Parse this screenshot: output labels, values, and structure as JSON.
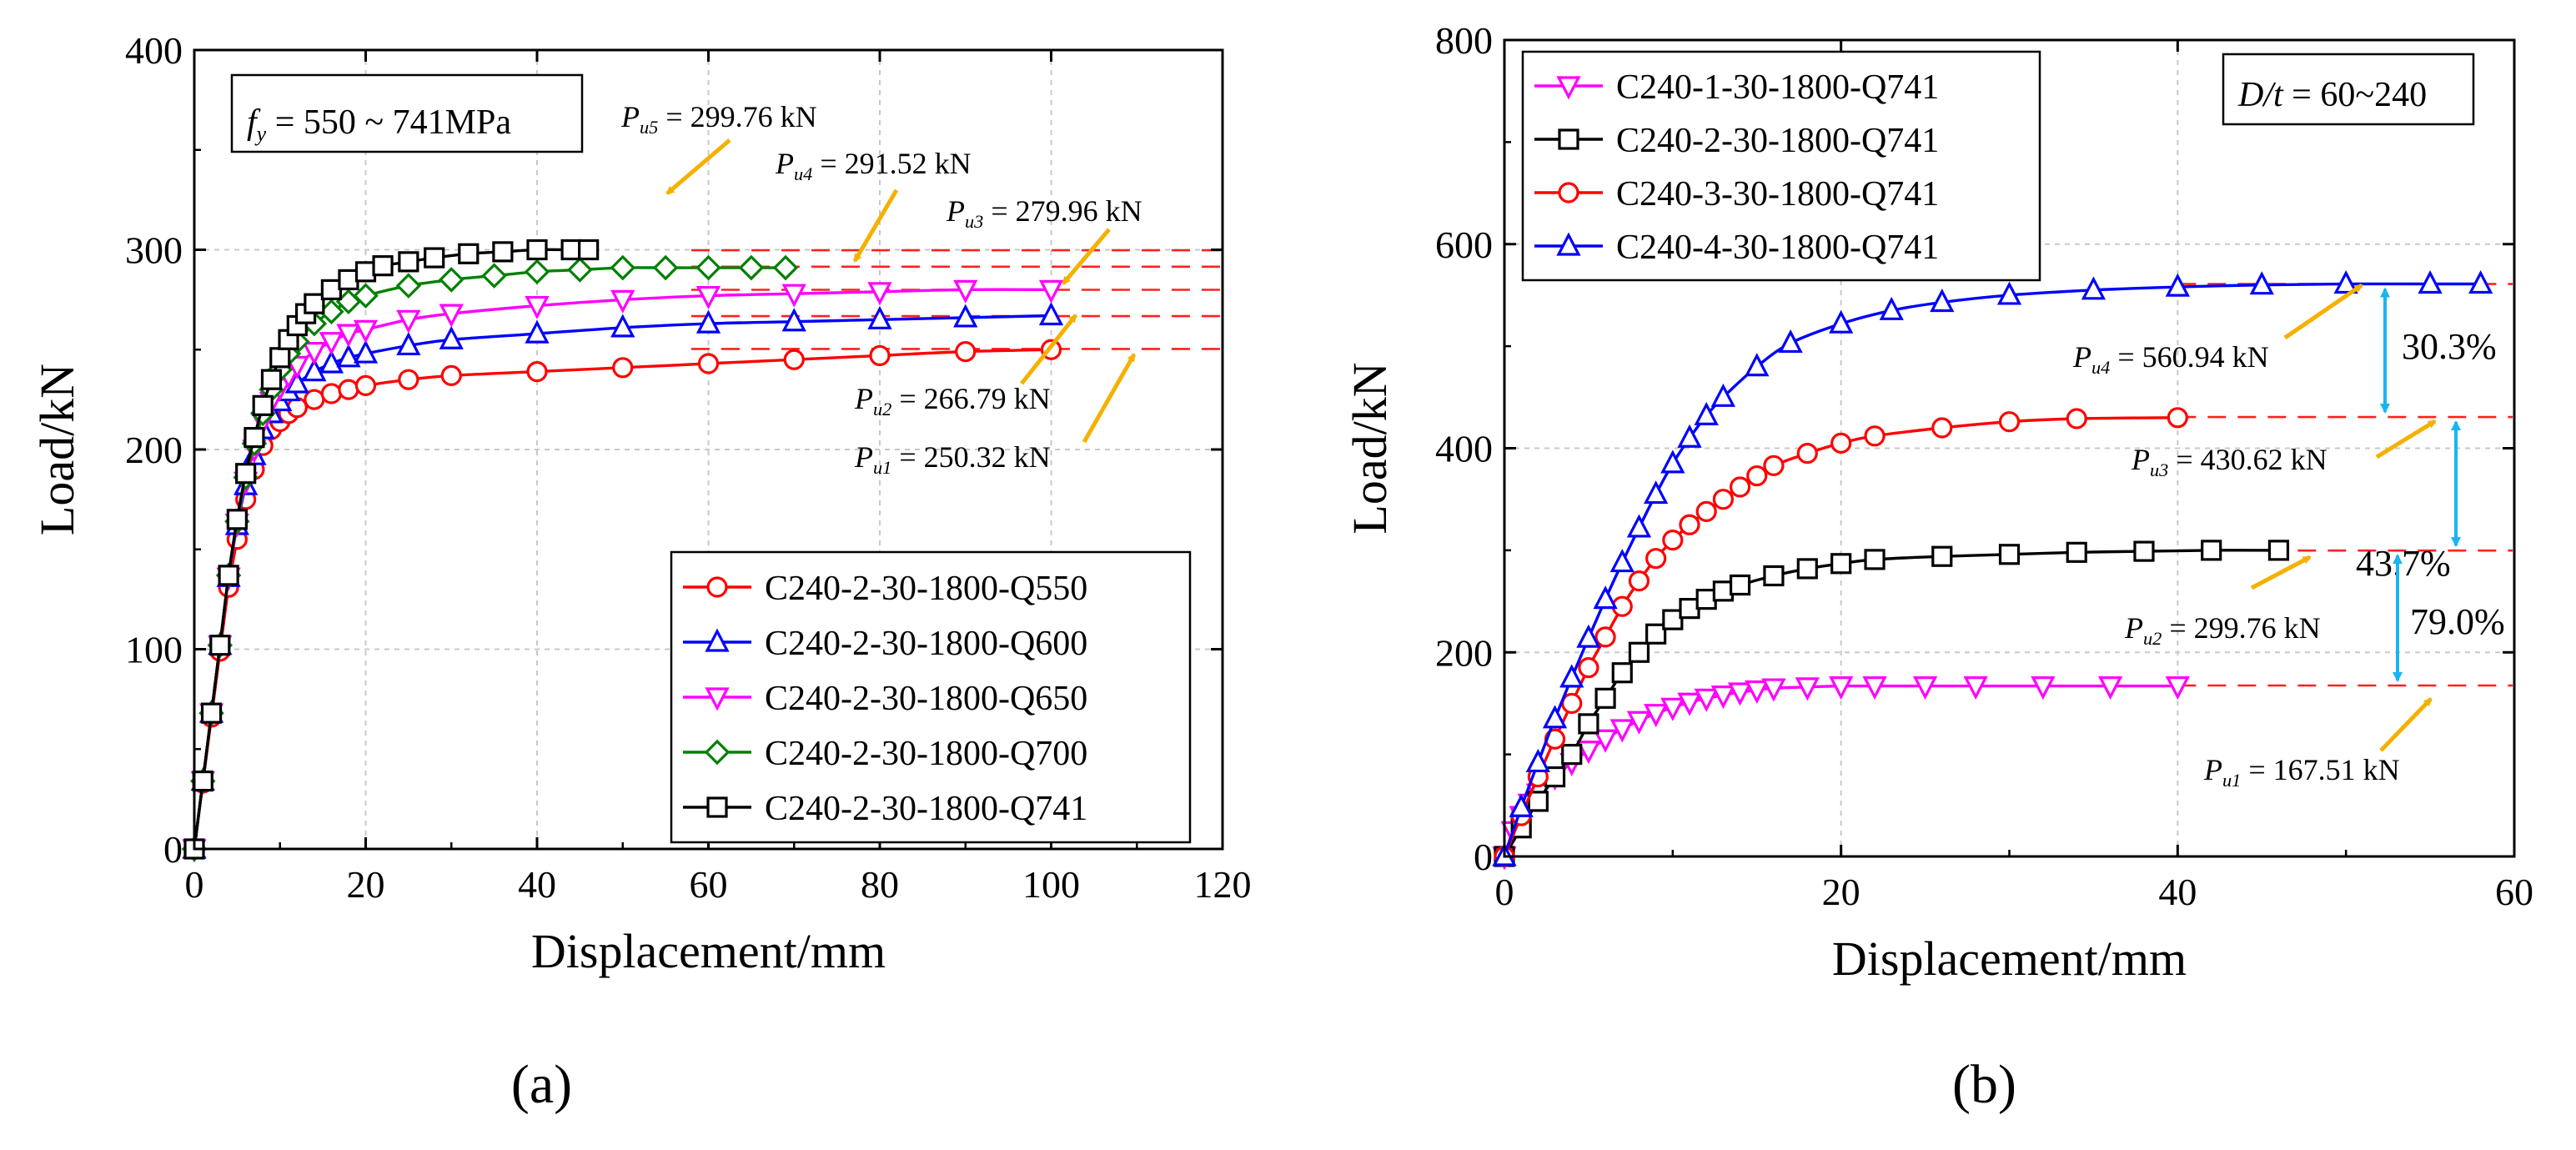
{
  "chart_data": [
    {
      "panel": "a",
      "type": "line",
      "caption": "(a)",
      "xlabel": "Displacement/mm",
      "ylabel": "Load/kN",
      "xlim": [
        0,
        120
      ],
      "ylim": [
        0,
        400
      ],
      "xticks": [
        0,
        20,
        40,
        60,
        80,
        100,
        120
      ],
      "yticks": [
        0,
        100,
        200,
        300,
        400
      ],
      "grid": true,
      "legend_position": "bottom-right",
      "note": {
        "symbol": "f",
        "sub": "y",
        "text": " = 550 ~ 741MPa"
      },
      "series": [
        {
          "name": "C240-2-30-1800-Q550",
          "color": "#ff0000",
          "marker": "circle",
          "x": [
            0,
            1,
            2,
            3,
            4,
            5,
            6,
            7,
            8,
            9,
            10,
            11,
            12,
            14,
            16,
            18,
            20,
            25,
            30,
            40,
            50,
            60,
            70,
            80,
            90,
            100
          ],
          "y": [
            0,
            33,
            66,
            99,
            131,
            155,
            175,
            190,
            202,
            210,
            214,
            218,
            221,
            225,
            228,
            230,
            232,
            235,
            237,
            239,
            241,
            243,
            245,
            247,
            249,
            250
          ]
        },
        {
          "name": "C240-2-30-1800-Q600",
          "color": "#0000ff",
          "marker": "triangle-up",
          "x": [
            0,
            1,
            2,
            3,
            4,
            5,
            6,
            7,
            8,
            9,
            10,
            11,
            12,
            14,
            16,
            18,
            20,
            25,
            30,
            40,
            50,
            60,
            70,
            80,
            90,
            100
          ],
          "y": [
            0,
            34,
            68,
            102,
            136,
            162,
            182,
            197,
            210,
            218,
            224,
            229,
            233,
            239,
            243,
            246,
            248,
            252,
            255,
            258,
            261,
            263,
            264,
            265,
            266,
            267
          ]
        },
        {
          "name": "C240-2-30-1800-Q650",
          "color": "#ff00ff",
          "marker": "triangle-down",
          "x": [
            0,
            1,
            2,
            3,
            4,
            5,
            6,
            7,
            8,
            9,
            10,
            11,
            12,
            14,
            16,
            18,
            20,
            25,
            30,
            40,
            50,
            60,
            70,
            80,
            90,
            100
          ],
          "y": [
            0,
            34,
            68,
            102,
            136,
            163,
            184,
            200,
            214,
            224,
            231,
            237,
            242,
            249,
            254,
            258,
            260,
            265,
            268,
            272,
            275,
            277,
            278,
            279,
            280,
            280
          ]
        },
        {
          "name": "C240-2-30-1800-Q700",
          "color": "#008000",
          "marker": "diamond",
          "x": [
            0,
            1,
            2,
            3,
            4,
            5,
            6,
            7,
            8,
            9,
            10,
            11,
            12,
            14,
            16,
            18,
            20,
            25,
            30,
            35,
            40,
            45,
            50,
            55,
            60,
            65,
            69
          ],
          "y": [
            0,
            34,
            68,
            102,
            137,
            164,
            186,
            203,
            218,
            230,
            240,
            248,
            254,
            263,
            269,
            274,
            277,
            282,
            285,
            287,
            289,
            290,
            291,
            291,
            291,
            291,
            291
          ]
        },
        {
          "name": "C240-2-30-1800-Q741",
          "color": "#000000",
          "marker": "square",
          "x": [
            0,
            1,
            2,
            3,
            4,
            5,
            6,
            7,
            8,
            9,
            10,
            11,
            12,
            13,
            14,
            16,
            18,
            20,
            22,
            25,
            28,
            32,
            36,
            40,
            44,
            46
          ],
          "y": [
            0,
            34,
            68,
            102,
            137,
            165,
            188,
            206,
            222,
            235,
            246,
            255,
            262,
            268,
            273,
            280,
            285,
            289,
            292,
            294,
            296,
            298,
            299,
            300,
            300,
            300
          ]
        }
      ],
      "reference_lines": [
        250.32,
        266.79,
        279.96,
        291.52,
        299.76
      ],
      "annotations": [
        {
          "symbol": "P",
          "sub": "u5",
          "text": " = 299.76  kN"
        },
        {
          "symbol": "P",
          "sub": "u4",
          "text": " = 291.52  kN"
        },
        {
          "symbol": "P",
          "sub": "u3",
          "text": " = 279.96  kN"
        },
        {
          "symbol": "P",
          "sub": "u2",
          "text": " = 266.79  kN"
        },
        {
          "symbol": "P",
          "sub": "u1",
          "text": " = 250.32  kN"
        }
      ]
    },
    {
      "panel": "b",
      "type": "line",
      "caption": "(b)",
      "xlabel": "Displacement/mm",
      "ylabel": "Load/kN",
      "xlim": [
        0,
        60
      ],
      "ylim": [
        0,
        800
      ],
      "xticks": [
        0,
        20,
        40,
        60
      ],
      "yticks": [
        0,
        200,
        400,
        600,
        800
      ],
      "grid": true,
      "legend_position": "top-left",
      "note": {
        "symbol": "D/t",
        "sub": "",
        "text": " = 60~240"
      },
      "series": [
        {
          "name": "C240-1-30-1800-Q741",
          "color": "#ff00ff",
          "marker": "triangle-down",
          "x": [
            0,
            0.5,
            1,
            1.5,
            2,
            3,
            4,
            5,
            6,
            7,
            8,
            9,
            10,
            11,
            12,
            13,
            14,
            15,
            16,
            18,
            20,
            22,
            25,
            28,
            32,
            36,
            40
          ],
          "y": [
            0,
            25,
            40,
            52,
            62,
            78,
            92,
            104,
            115,
            125,
            133,
            140,
            146,
            151,
            155,
            158,
            161,
            163,
            165,
            166,
            167,
            167,
            167,
            167,
            167,
            167,
            167
          ]
        },
        {
          "name": "C240-2-30-1800-Q741",
          "color": "#000000",
          "marker": "square",
          "x": [
            0,
            1,
            2,
            3,
            4,
            5,
            6,
            7,
            8,
            9,
            10,
            11,
            12,
            13,
            14,
            16,
            18,
            20,
            22,
            26,
            30,
            34,
            38,
            42,
            46
          ],
          "y": [
            0,
            28,
            54,
            78,
            100,
            130,
            155,
            180,
            200,
            218,
            232,
            243,
            252,
            260,
            266,
            275,
            282,
            287,
            291,
            294,
            296,
            298,
            299,
            300,
            300
          ]
        },
        {
          "name": "C240-3-30-1800-Q741",
          "color": "#ff0000",
          "marker": "circle",
          "x": [
            0,
            1,
            2,
            3,
            4,
            5,
            6,
            7,
            8,
            9,
            10,
            11,
            12,
            13,
            14,
            15,
            16,
            18,
            20,
            22,
            26,
            30,
            34,
            40
          ],
          "y": [
            0,
            40,
            78,
            115,
            150,
            185,
            215,
            245,
            270,
            292,
            310,
            325,
            338,
            350,
            362,
            373,
            383,
            395,
            405,
            412,
            420,
            426,
            429,
            430
          ]
        },
        {
          "name": "C240-4-30-1800-Q741",
          "color": "#0000ff",
          "marker": "triangle-up",
          "x": [
            0,
            1,
            2,
            3,
            4,
            5,
            6,
            7,
            8,
            9,
            10,
            11,
            12,
            13,
            15,
            17,
            20,
            23,
            26,
            30,
            35,
            40,
            45,
            50,
            55,
            58
          ],
          "y": [
            0,
            48,
            92,
            135,
            175,
            214,
            252,
            288,
            322,
            355,
            385,
            410,
            432,
            450,
            480,
            503,
            522,
            535,
            543,
            550,
            555,
            558,
            560,
            561,
            561,
            561
          ]
        }
      ],
      "reference_lines": [
        167.51,
        299.76,
        430.62,
        560.94
      ],
      "annotations": [
        {
          "symbol": "P",
          "sub": "u4",
          "text": " = 560.94  kN"
        },
        {
          "symbol": "P",
          "sub": "u3",
          "text": " = 430.62  kN"
        },
        {
          "symbol": "P",
          "sub": "u2",
          "text": " = 299.76  kN"
        },
        {
          "symbol": "P",
          "sub": "u1",
          "text": " = 167.51  kN"
        }
      ],
      "increases": [
        "30.3%",
        "43.7%",
        "79.0%"
      ]
    }
  ]
}
